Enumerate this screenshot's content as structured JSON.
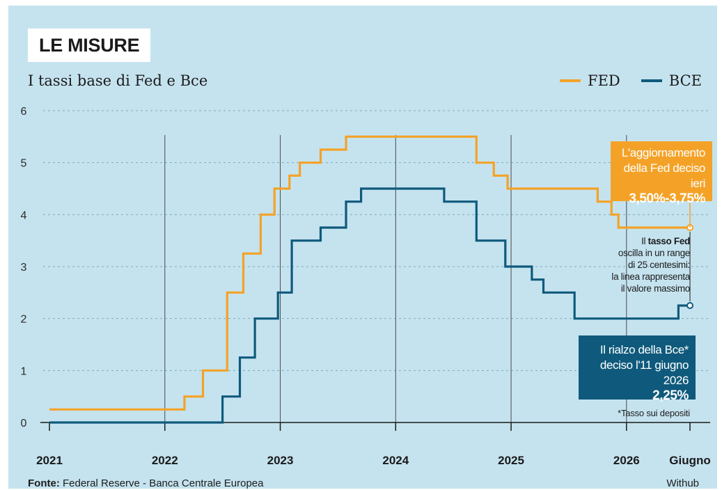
{
  "header": {
    "badge": "LE MISURE",
    "subtitle": "I tassi base di Fed e Bce"
  },
  "colors": {
    "fed": "#f4a227",
    "bce": "#0f5a7c",
    "background": "#c5e3ef"
  },
  "legend": {
    "fed": "FED",
    "bce": "BCE"
  },
  "annotations": {
    "fed_box": {
      "line1": "L'aggiornamento",
      "line2": "della Fed deciso ieri",
      "value": "3,50%-3,75%"
    },
    "fed_note": {
      "line1_pre": "Il ",
      "line1_bold": "tasso Fed",
      "line2": "oscilla in un range",
      "line3": "di 25 centesimi:",
      "line4": "la linea rappresenta",
      "line5": "il valore massimo"
    },
    "bce_box": {
      "line1": "Il rialzo della Bce*",
      "line2": "deciso l'11 giugno 2026",
      "value": "2,25%"
    },
    "footnote": "*Tasso sui depositi"
  },
  "footer": {
    "source_label": "Fonte:",
    "source_text": " Federal Reserve - Banca Centrale Europea",
    "credit": "Withub"
  },
  "chart_data": {
    "type": "line",
    "step": true,
    "title": "I tassi base di Fed e Bce",
    "xlabel": "",
    "ylabel": "",
    "ylim": [
      0,
      6
    ],
    "yticks": [
      0,
      1,
      2,
      3,
      4,
      5,
      6
    ],
    "xticks": [
      {
        "x": 2021.0,
        "label": "2021"
      },
      {
        "x": 2022.0,
        "label": "2022"
      },
      {
        "x": 2023.0,
        "label": "2023"
      },
      {
        "x": 2024.0,
        "label": "2024"
      },
      {
        "x": 2025.0,
        "label": "2025"
      },
      {
        "x": 2026.0,
        "label": "2026"
      },
      {
        "x": 2026.55,
        "label": "Giugno"
      }
    ],
    "xlim": [
      2021.0,
      2026.55
    ],
    "grid": "horizontal-dashed",
    "legend_position": "top-right",
    "series": [
      {
        "name": "FED",
        "points": [
          [
            2021.0,
            0.25
          ],
          [
            2022.17,
            0.25
          ],
          [
            2022.17,
            0.5
          ],
          [
            2022.33,
            0.5
          ],
          [
            2022.33,
            1.0
          ],
          [
            2022.54,
            1.0
          ],
          [
            2022.54,
            2.5
          ],
          [
            2022.68,
            2.5
          ],
          [
            2022.68,
            3.25
          ],
          [
            2022.83,
            3.25
          ],
          [
            2022.83,
            4.0
          ],
          [
            2022.95,
            4.0
          ],
          [
            2022.95,
            4.5
          ],
          [
            2023.08,
            4.5
          ],
          [
            2023.08,
            4.75
          ],
          [
            2023.17,
            4.75
          ],
          [
            2023.17,
            5.0
          ],
          [
            2023.35,
            5.0
          ],
          [
            2023.35,
            5.25
          ],
          [
            2023.57,
            5.25
          ],
          [
            2023.57,
            5.5
          ],
          [
            2024.7,
            5.5
          ],
          [
            2024.7,
            5.0
          ],
          [
            2024.85,
            5.0
          ],
          [
            2024.85,
            4.75
          ],
          [
            2024.97,
            4.75
          ],
          [
            2024.97,
            4.5
          ],
          [
            2025.75,
            4.5
          ],
          [
            2025.75,
            4.25
          ],
          [
            2025.87,
            4.25
          ],
          [
            2025.87,
            4.0
          ],
          [
            2025.93,
            4.0
          ],
          [
            2025.93,
            3.75
          ],
          [
            2026.55,
            3.75
          ]
        ]
      },
      {
        "name": "BCE",
        "points": [
          [
            2021.0,
            -0.5
          ],
          [
            2022.5,
            -0.5
          ],
          [
            2022.5,
            0.5
          ],
          [
            2022.65,
            0.5
          ],
          [
            2022.65,
            1.25
          ],
          [
            2022.78,
            1.25
          ],
          [
            2022.78,
            2.0
          ],
          [
            2022.98,
            2.0
          ],
          [
            2022.98,
            2.5
          ],
          [
            2023.1,
            2.5
          ],
          [
            2023.1,
            3.5
          ],
          [
            2023.35,
            3.5
          ],
          [
            2023.35,
            3.75
          ],
          [
            2023.57,
            3.75
          ],
          [
            2023.57,
            4.25
          ],
          [
            2023.7,
            4.25
          ],
          [
            2023.7,
            4.5
          ],
          [
            2024.42,
            4.5
          ],
          [
            2024.42,
            4.25
          ],
          [
            2024.7,
            4.25
          ],
          [
            2024.7,
            3.5
          ],
          [
            2024.95,
            3.5
          ],
          [
            2024.95,
            3.0
          ],
          [
            2025.18,
            3.0
          ],
          [
            2025.18,
            2.75
          ],
          [
            2025.28,
            2.75
          ],
          [
            2025.28,
            2.5
          ],
          [
            2025.55,
            2.5
          ],
          [
            2025.55,
            2.0
          ],
          [
            2026.45,
            2.0
          ],
          [
            2026.45,
            2.25
          ],
          [
            2026.55,
            2.25
          ]
        ]
      }
    ]
  }
}
